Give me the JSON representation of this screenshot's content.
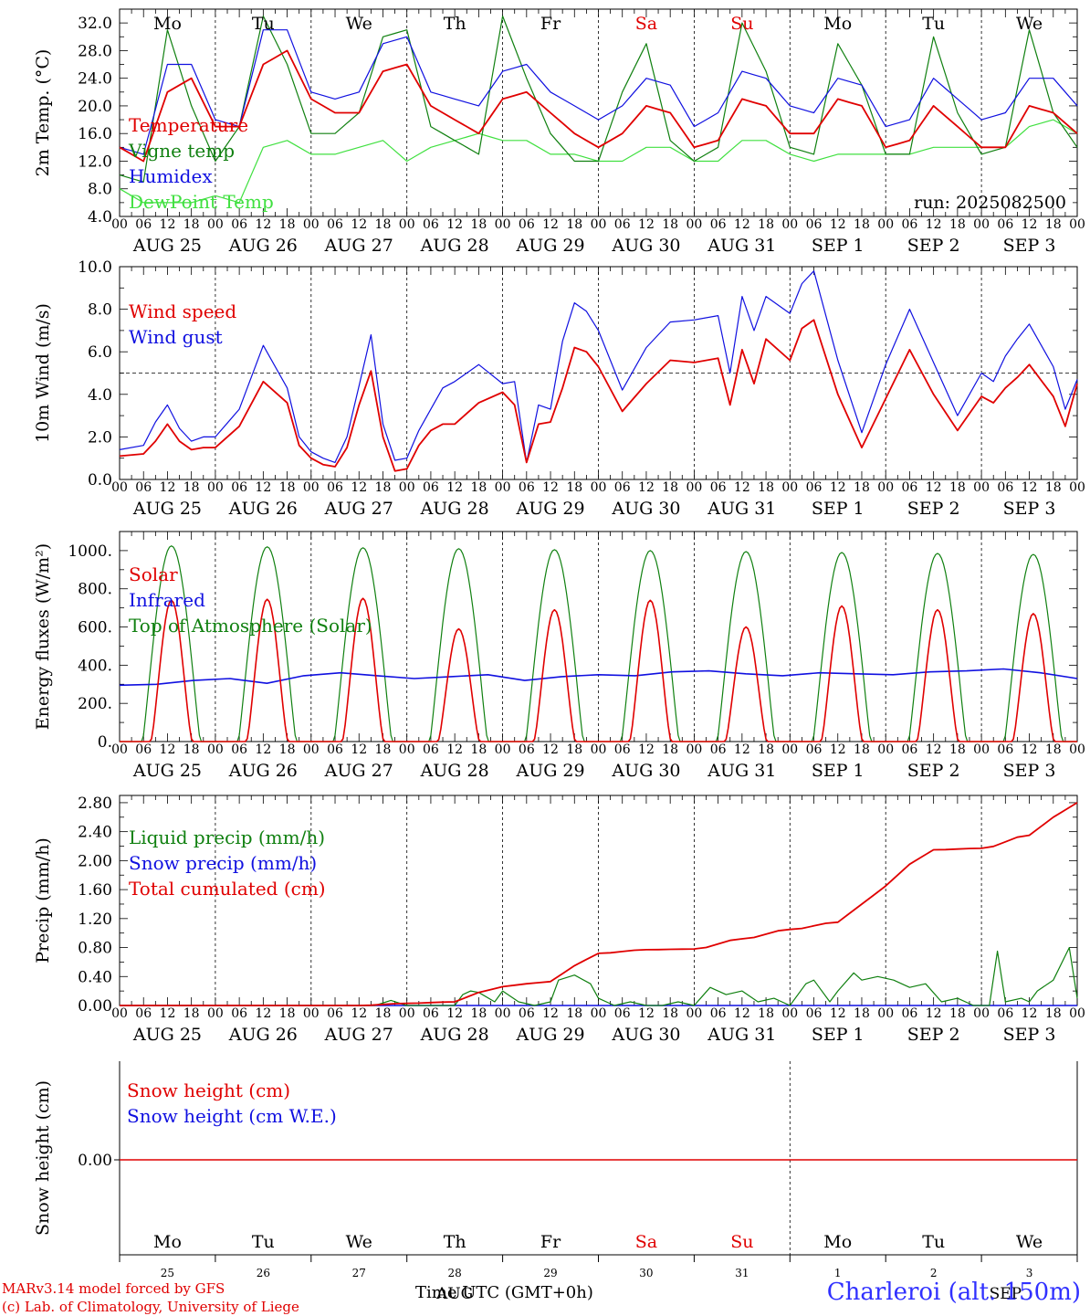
{
  "meta": {
    "run": "run: 2025082500",
    "model": "MARv3.14 model forced by GFS",
    "lab": "(c) Lab. of Climatology, University of Liege",
    "xlabel": "Time UTC (GMT+0h)",
    "station": "Charleroi (alt. 150m)",
    "colors": {
      "red": "#e00000",
      "blue": "#1010e0",
      "green": "#108010",
      "lightgreen": "#40e040"
    }
  },
  "days": {
    "weekdays": [
      "Mo",
      "Tu",
      "We",
      "Th",
      "Fr",
      "Sa",
      "Su",
      "Mo",
      "Tu",
      "We"
    ],
    "weekend_indices": [
      5,
      6
    ],
    "month_labels": [
      "AUG",
      "AUG",
      "AUG",
      "AUG",
      "AUG",
      "AUG",
      "AUG",
      "SEP",
      "SEP",
      "SEP"
    ],
    "day_numbers": [
      "25",
      "26",
      "27",
      "28",
      "29",
      "30",
      "31",
      "1",
      "2",
      "3"
    ],
    "hour_ticks": [
      "00",
      "06",
      "12",
      "18"
    ],
    "last_month_label": "AUG",
    "last_sep_label": "SEP"
  },
  "chart_data": [
    {
      "id": "temp",
      "type": "line",
      "ylabel": "2m Temp. (°C)",
      "ylim": [
        4,
        34
      ],
      "yticks": [
        "32.0",
        "28.0",
        "24.0",
        "20.0",
        "16.0",
        "12.0",
        "8.0",
        "4.0"
      ],
      "ytick_values": [
        32,
        28,
        24,
        20,
        16,
        12,
        8,
        4
      ],
      "legend": [
        "Temperature",
        "Vigne temp",
        "Humidex",
        "DewPoint Temp"
      ],
      "series": [
        {
          "name": "Temperature",
          "color": "red",
          "t": [
            0,
            6,
            12,
            18,
            24,
            30,
            36,
            42,
            48,
            54,
            60,
            66,
            72,
            78,
            84,
            90,
            96,
            102,
            108,
            114,
            120,
            126,
            132,
            138,
            144,
            150,
            156,
            162,
            168,
            174,
            180,
            186,
            192,
            198,
            204,
            210,
            216,
            222,
            228,
            234,
            240
          ],
          "values": [
            14,
            12,
            22,
            24,
            17,
            17,
            26,
            28,
            21,
            19,
            19,
            25,
            26,
            20,
            18,
            16,
            21,
            22,
            19,
            16,
            14,
            16,
            20,
            19,
            14,
            15,
            21,
            20,
            16,
            16,
            21,
            20,
            14,
            15,
            20,
            17,
            14,
            14,
            20,
            19,
            16
          ]
        },
        {
          "name": "Vigne temp",
          "color": "green",
          "t": [
            0,
            6,
            12,
            18,
            24,
            30,
            36,
            42,
            48,
            54,
            60,
            66,
            72,
            78,
            84,
            90,
            96,
            102,
            108,
            114,
            120,
            126,
            132,
            138,
            144,
            150,
            156,
            162,
            168,
            174,
            180,
            186,
            192,
            198,
            204,
            210,
            216,
            222,
            228,
            234,
            240
          ],
          "values": [
            10,
            9,
            31,
            20,
            12,
            17,
            33,
            26,
            16,
            16,
            19,
            30,
            31,
            17,
            15,
            13,
            33,
            24,
            16,
            12,
            12,
            22,
            29,
            15,
            12,
            14,
            32,
            25,
            14,
            13,
            29,
            23,
            13,
            13,
            30,
            19,
            13,
            14,
            31,
            19,
            14
          ]
        },
        {
          "name": "Humidex",
          "color": "blue",
          "t": [
            0,
            6,
            12,
            18,
            24,
            30,
            36,
            42,
            48,
            54,
            60,
            66,
            72,
            78,
            84,
            90,
            96,
            102,
            108,
            114,
            120,
            126,
            132,
            138,
            144,
            150,
            156,
            162,
            168,
            174,
            180,
            186,
            192,
            198,
            204,
            210,
            216,
            222,
            228,
            234,
            240
          ],
          "values": [
            14,
            13,
            26,
            26,
            18,
            17,
            31,
            31,
            22,
            21,
            22,
            29,
            30,
            22,
            21,
            20,
            25,
            26,
            22,
            20,
            18,
            20,
            24,
            23,
            17,
            19,
            25,
            24,
            20,
            19,
            24,
            23,
            17,
            18,
            24,
            21,
            18,
            19,
            24,
            24,
            20
          ]
        },
        {
          "name": "DewPoint Temp",
          "color": "lightgreen",
          "t": [
            0,
            6,
            12,
            18,
            24,
            30,
            36,
            42,
            48,
            54,
            60,
            66,
            72,
            78,
            84,
            90,
            96,
            102,
            108,
            114,
            120,
            126,
            132,
            138,
            144,
            150,
            156,
            162,
            168,
            174,
            180,
            186,
            192,
            198,
            204,
            210,
            216,
            222,
            228,
            234,
            240
          ],
          "values": [
            8,
            6,
            6,
            6,
            7,
            6,
            14,
            15,
            13,
            13,
            14,
            15,
            12,
            14,
            15,
            16,
            15,
            15,
            13,
            13,
            12,
            12,
            14,
            14,
            12,
            12,
            15,
            15,
            13,
            12,
            13,
            13,
            13,
            13,
            14,
            14,
            14,
            14,
            17,
            18,
            16
          ]
        }
      ]
    },
    {
      "id": "wind",
      "type": "line",
      "ylabel": "10m Wind (m/s)",
      "ylim": [
        0,
        10
      ],
      "yticks": [
        "10.0",
        "8.0",
        "6.0",
        "4.0",
        "2.0",
        "0.0"
      ],
      "ytick_values": [
        10,
        8,
        6,
        4,
        2,
        0
      ],
      "ref_line": 5.0,
      "legend": [
        "Wind speed",
        "Wind gust"
      ],
      "series": [
        {
          "name": "Wind speed",
          "color": "red",
          "t": [
            0,
            6,
            9,
            12,
            15,
            18,
            21,
            24,
            30,
            36,
            42,
            45,
            48,
            51,
            54,
            57,
            60,
            63,
            66,
            69,
            72,
            75,
            78,
            81,
            84,
            90,
            96,
            99,
            102,
            105,
            108,
            111,
            114,
            117,
            120,
            126,
            132,
            138,
            144,
            150,
            153,
            156,
            159,
            162,
            168,
            171,
            174,
            180,
            186,
            192,
            198,
            204,
            210,
            216,
            219,
            222,
            225,
            228,
            234,
            237,
            240
          ],
          "values": [
            1.1,
            1.2,
            1.8,
            2.6,
            1.8,
            1.4,
            1.5,
            1.5,
            2.5,
            4.6,
            3.6,
            1.6,
            1.0,
            0.7,
            0.6,
            1.5,
            3.5,
            5.1,
            2.0,
            0.4,
            0.5,
            1.6,
            2.3,
            2.6,
            2.6,
            3.6,
            4.1,
            3.5,
            0.8,
            2.6,
            2.7,
            4.3,
            6.2,
            6.0,
            5.3,
            3.2,
            4.5,
            5.6,
            5.5,
            5.7,
            3.5,
            6.1,
            4.5,
            6.6,
            5.6,
            7.1,
            7.5,
            4.0,
            1.5,
            3.8,
            6.1,
            4.0,
            2.3,
            3.9,
            3.6,
            4.3,
            4.8,
            5.4,
            3.9,
            2.5,
            4.5
          ]
        },
        {
          "name": "Wind gust",
          "color": "blue",
          "t": [
            0,
            6,
            9,
            12,
            15,
            18,
            21,
            24,
            30,
            36,
            42,
            45,
            48,
            51,
            54,
            57,
            60,
            63,
            66,
            69,
            72,
            75,
            78,
            81,
            84,
            90,
            96,
            99,
            102,
            105,
            108,
            111,
            114,
            117,
            120,
            126,
            132,
            138,
            144,
            150,
            153,
            156,
            159,
            162,
            168,
            171,
            174,
            180,
            186,
            192,
            198,
            204,
            210,
            216,
            219,
            222,
            225,
            228,
            234,
            237,
            240
          ],
          "values": [
            1.4,
            1.6,
            2.7,
            3.5,
            2.4,
            1.8,
            2.0,
            2.0,
            3.3,
            6.3,
            4.3,
            2.0,
            1.3,
            1.0,
            0.8,
            2.0,
            4.4,
            6.8,
            2.6,
            0.9,
            1.0,
            2.3,
            3.3,
            4.3,
            4.6,
            5.4,
            4.5,
            4.6,
            0.8,
            3.5,
            3.3,
            6.5,
            8.3,
            7.9,
            7.0,
            4.2,
            6.2,
            7.4,
            7.5,
            7.7,
            5.0,
            8.6,
            7.0,
            8.6,
            7.8,
            9.2,
            9.8,
            5.6,
            2.2,
            5.4,
            8.0,
            5.5,
            3.0,
            5.0,
            4.6,
            5.8,
            6.6,
            7.3,
            5.3,
            3.3,
            4.7
          ]
        }
      ]
    },
    {
      "id": "energy",
      "type": "line",
      "ylabel": "Energy fluxes (W/m²)",
      "ylim": [
        0,
        1100
      ],
      "yticks": [
        "1000.",
        "800.",
        "600.",
        "400.",
        "200.",
        "0."
      ],
      "ytick_values": [
        1000,
        800,
        600,
        400,
        200,
        0
      ],
      "legend": [
        "Solar",
        "Infrared",
        "Top of Atmosphere (Solar)"
      ],
      "toa_peaks": [
        1025,
        1020,
        1015,
        1010,
        1005,
        1000,
        995,
        990,
        985,
        980
      ],
      "solar_peaks": [
        740,
        745,
        750,
        590,
        690,
        740,
        600,
        710,
        690,
        670
      ],
      "infrared": [
        295,
        300,
        320,
        330,
        305,
        345,
        360,
        345,
        330,
        340,
        350,
        320,
        340,
        350,
        345,
        365,
        370,
        355,
        345,
        360,
        355,
        350,
        365,
        370,
        380,
        360,
        330
      ]
    },
    {
      "id": "precip",
      "type": "line",
      "ylabel": "Precip (mm/h)",
      "ylim": [
        0,
        2.9
      ],
      "yticks": [
        "2.80",
        "2.40",
        "2.00",
        "1.60",
        "1.20",
        "0.80",
        "0.40",
        "0.00"
      ],
      "ytick_values": [
        2.8,
        2.4,
        2.0,
        1.6,
        1.2,
        0.8,
        0.4,
        0.0
      ],
      "legend": [
        "Liquid precip (mm/h)",
        "Snow precip (mm/h)",
        "Total cumulated (cm)"
      ],
      "series": [
        {
          "name": "Total cumulated (cm)",
          "color": "red",
          "t": [
            0,
            60,
            72,
            84,
            90,
            96,
            102,
            108,
            114,
            120,
            132,
            144,
            156,
            168,
            180,
            186,
            192,
            198,
            204,
            216,
            228,
            234,
            240
          ],
          "values": [
            0,
            0,
            0.03,
            0.05,
            0.18,
            0.26,
            0.3,
            0.33,
            0.55,
            0.72,
            0.77,
            0.78,
            0.92,
            1.05,
            1.15,
            1.4,
            1.65,
            1.95,
            2.15,
            2.17,
            2.35,
            2.6,
            2.8
          ]
        },
        {
          "name": "Liquid precip (mm/h)",
          "color": "green",
          "t": [
            0,
            64,
            68,
            72,
            84,
            86,
            88,
            90,
            94,
            96,
            100,
            104,
            108,
            110,
            114,
            118,
            120,
            124,
            128,
            132,
            136,
            140,
            144,
            148,
            152,
            156,
            160,
            164,
            168,
            172,
            174,
            178,
            180,
            184,
            186,
            190,
            194,
            198,
            202,
            206,
            210,
            214,
            216,
            218,
            220,
            222,
            226,
            228,
            230,
            234,
            238,
            240
          ],
          "values": [
            0,
            0,
            0.07,
            0,
            0,
            0.15,
            0.2,
            0.18,
            0.05,
            0.2,
            0.05,
            0,
            0.05,
            0.35,
            0.42,
            0.3,
            0.1,
            0,
            0.05,
            0,
            0,
            0.05,
            0,
            0.25,
            0.15,
            0.2,
            0.05,
            0.1,
            0,
            0.3,
            0.35,
            0.05,
            0.2,
            0.45,
            0.35,
            0.4,
            0.35,
            0.25,
            0.3,
            0.05,
            0.1,
            0,
            0,
            0,
            0.75,
            0.05,
            0.1,
            0.05,
            0.2,
            0.35,
            0.8,
            0.1
          ]
        }
      ]
    },
    {
      "id": "snow",
      "type": "line",
      "ylabel": "Snow height (cm)",
      "yticks": [
        "0.00"
      ],
      "ytick_values": [
        0
      ],
      "legend": [
        "Snow height (cm)",
        "Snow height (cm W.E.)"
      ],
      "series": [
        {
          "name": "Snow height (cm)",
          "color": "red",
          "t": [
            0,
            240
          ],
          "values": [
            0,
            0
          ]
        }
      ]
    }
  ]
}
